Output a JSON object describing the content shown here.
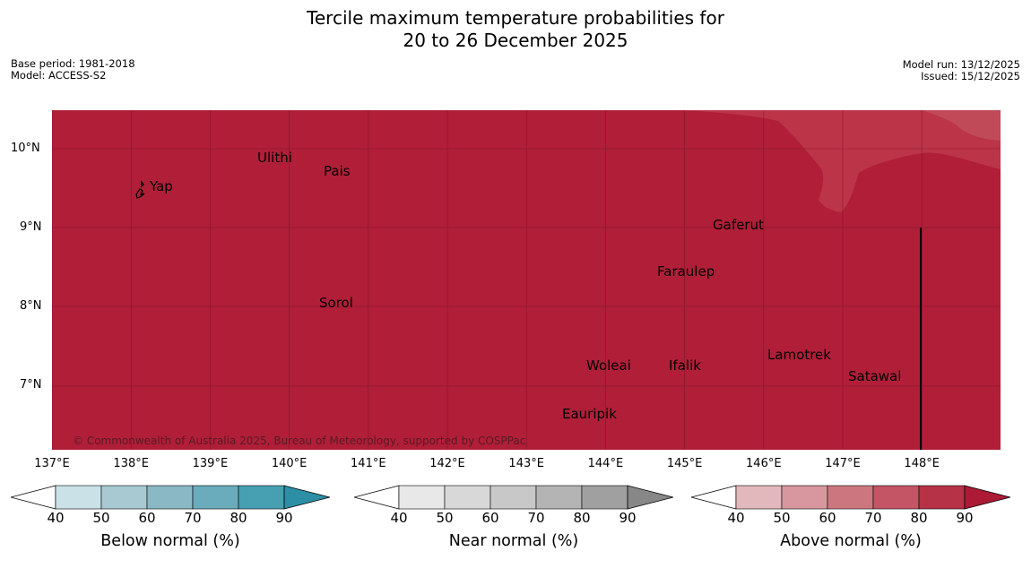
{
  "title": {
    "line1": "Tercile maximum temperature probabilities for",
    "line2": "20 to 26 December 2025"
  },
  "meta": {
    "base_period": "Base period: 1981-2018",
    "model": "Model: ACCESS-S2",
    "model_run": "Model run: 13/12/2025",
    "issued": "Issued: 15/12/2025"
  },
  "map": {
    "fill_color": "#b01e38",
    "light_fill_color": "#bc3448",
    "lighter_fill_color": "#c04a58",
    "lat_labels": [
      "10°N",
      "9°N",
      "8°N",
      "7°N"
    ],
    "lon_labels": [
      "137°E",
      "138°E",
      "139°E",
      "140°E",
      "141°E",
      "142°E",
      "143°E",
      "144°E",
      "145°E",
      "146°E",
      "147°E",
      "148°E"
    ],
    "places": [
      "Yap",
      "Ulithi",
      "Pais",
      "Gaferut",
      "Faraulep",
      "Sorol",
      "Lamotrek",
      "Woleai",
      "Ifalik",
      "Satawal",
      "Eauripik"
    ],
    "copyright": "© Commonwealth of Australia 2025, Bureau of Meteorology, supported by COSPPac"
  },
  "legends": [
    {
      "title": "Below normal (%)",
      "ticks": [
        "40",
        "50",
        "60",
        "70",
        "80",
        "90"
      ],
      "colors": [
        "#ffffff",
        "#c9e1e7",
        "#a8c9d1",
        "#8ab8c4",
        "#6aacbc",
        "#46a0b2",
        "#2c8fa5"
      ]
    },
    {
      "title": "Near normal (%)",
      "ticks": [
        "40",
        "50",
        "60",
        "70",
        "80",
        "90"
      ],
      "colors": [
        "#ffffff",
        "#e8e8e8",
        "#d8d8d8",
        "#c8c8c8",
        "#b4b4b4",
        "#a0a0a0",
        "#878787"
      ]
    },
    {
      "title": "Above normal (%)",
      "ticks": [
        "40",
        "50",
        "60",
        "70",
        "80",
        "90"
      ],
      "colors": [
        "#ffffff",
        "#e2b8bd",
        "#d8979f",
        "#cc7780",
        "#c45564",
        "#b53247",
        "#ac1a35"
      ]
    }
  ]
}
